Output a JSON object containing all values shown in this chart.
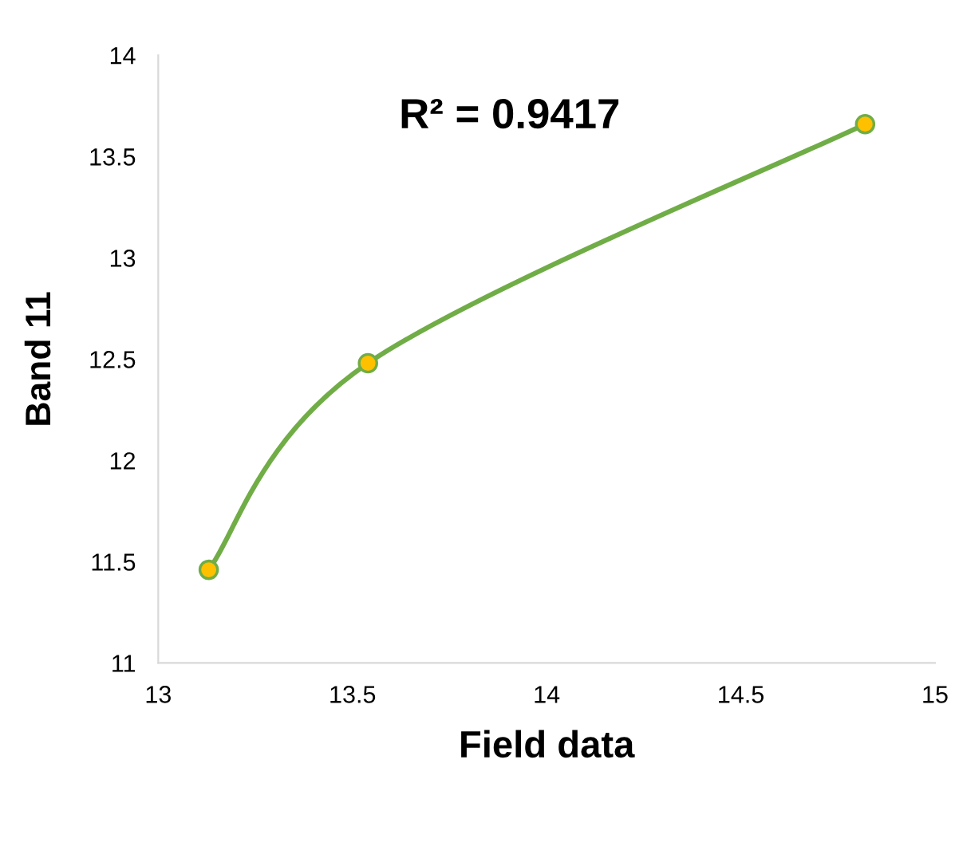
{
  "chart_data": {
    "type": "line",
    "xlabel": "Field data",
    "ylabel": "Band 11",
    "x": [
      13.13,
      13.54,
      14.82
    ],
    "series": [
      {
        "color": "#70ad47",
        "values": [
          11.46,
          12.48,
          13.66
        ]
      }
    ],
    "marker": "circle",
    "line_style": "solid",
    "xlim": [
      13,
      15
    ],
    "xticks": [
      13,
      13.5,
      14,
      14.5,
      15
    ],
    "ylim": [
      11,
      14
    ],
    "yticks": [
      11,
      11.5,
      12,
      12.5,
      13,
      13.5,
      14
    ],
    "annotations": [
      "R² = 0.9417"
    ],
    "grid": false,
    "legend": false
  }
}
